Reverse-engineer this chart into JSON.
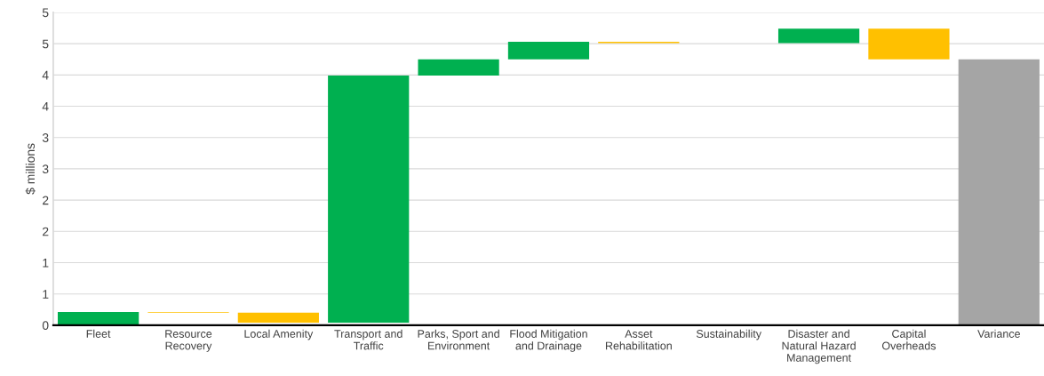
{
  "chart_data": {
    "type": "bar",
    "ylabel": "$ millions",
    "categories": [
      "Fleet",
      "Resource Recovery",
      "Local Amenity",
      "Transport and Traffic",
      "Parks, Sport and Environment",
      "Flood Mitigation and Drainage",
      "Asset Rehabilitation",
      "Sustainability",
      "Disaster and Natural Hazard Management",
      "Capital Overheads",
      "Variance"
    ],
    "values": [
      0.21,
      -0.01,
      -0.16,
      3.95,
      0.26,
      0.28,
      -0.02,
      null,
      0.23,
      -0.49,
      4.25
    ],
    "base": [
      0,
      0.21,
      0.2,
      0.04,
      3.99,
      4.25,
      4.53,
      null,
      4.51,
      4.74,
      0
    ],
    "colors": [
      "#00b050",
      "#ffc000",
      "#ffc000",
      "#00b050",
      "#00b050",
      "#00b050",
      "#ffc000",
      "#00b050",
      "#00b050",
      "#ffc000",
      "#a5a5a5"
    ],
    "ylim": [
      0,
      5
    ],
    "yticks": [
      0,
      {
        "value": 0.5,
        "label": "1"
      },
      {
        "value": 1,
        "label": "1"
      },
      {
        "value": 1.5,
        "label": "2"
      },
      {
        "value": 2,
        "label": "2"
      },
      {
        "value": 2.5,
        "label": "3"
      },
      {
        "value": 3,
        "label": "3"
      },
      {
        "value": 3.5,
        "label": "4"
      },
      {
        "value": 4,
        "label": "4"
      },
      {
        "value": 4.5,
        "label": "5"
      },
      {
        "value": 5,
        "label": "5"
      }
    ],
    "grid": "y"
  }
}
